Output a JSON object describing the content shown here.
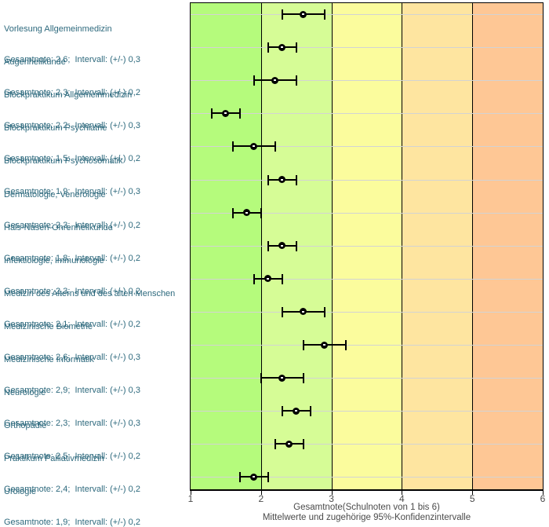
{
  "chart_data": {
    "type": "scatter",
    "subtype": "means-with-confidence-intervals",
    "xlabel": "Gesamtnote(Schulnoten von 1 bis 6)",
    "xlabel2": "Mittelwerte und zugehörige 95%-Konfidenzintervalle",
    "xlim": [
      1,
      6
    ],
    "x_ticks": [
      "1",
      "2",
      "3",
      "4",
      "5",
      "6"
    ],
    "grid": "horizontal gridline per row",
    "gridline_color": "#d3d3d3",
    "marker_color": "#000000",
    "label_color": "#2d697d",
    "axis_text_color": "#4a4a4a",
    "bands": [
      {
        "from": 1,
        "to": 2,
        "color": "#b5fb7c"
      },
      {
        "from": 2,
        "to": 3,
        "color": "#d6fc96"
      },
      {
        "from": 3,
        "to": 4,
        "color": "#fbfc9d"
      },
      {
        "from": 4,
        "to": 5,
        "color": "#fee5a0"
      },
      {
        "from": 5,
        "to": 6,
        "color": "#fec795"
      }
    ],
    "rows": [
      {
        "name": "Vorlesung Allgemeinmedizin",
        "note_line": "Gesamtnote: 2,6;  Intervall: (+/-) 0,3",
        "mean": 2.6,
        "interval": 0.3
      },
      {
        "name": "Augenheilkunde",
        "note_line": "Gesamtnote: 2,3;  Intervall: (+/-) 0,2",
        "mean": 2.3,
        "interval": 0.2
      },
      {
        "name": "Blockpraktikum Allgemeinmedizin",
        "note_line": "Gesamtnote: 2,2;  Intervall: (+/-) 0,3",
        "mean": 2.2,
        "interval": 0.3
      },
      {
        "name": "Blockpraktikum Psychiatrie",
        "note_line": "Gesamtnote: 1,5;  Intervall: (+/-) 0,2",
        "mean": 1.5,
        "interval": 0.2
      },
      {
        "name": "Blockpraktikum Psychosomatik",
        "note_line": "Gesamtnote: 1,9;  Intervall: (+/-) 0,3",
        "mean": 1.9,
        "interval": 0.3
      },
      {
        "name": "Dermatologie, Venerologie",
        "note_line": "Gesamtnote: 2,3;  Intervall: (+/-) 0,2",
        "mean": 2.3,
        "interval": 0.2
      },
      {
        "name": "Hals-Nasen-Ohrenheilkunde",
        "note_line": "Gesamtnote: 1,8;  Intervall: (+/-) 0,2",
        "mean": 1.8,
        "interval": 0.2
      },
      {
        "name": "Infektiologie, Immunologie",
        "note_line": "Gesamtnote: 2,3;  Intervall: (+/-) 0,2",
        "mean": 2.3,
        "interval": 0.2
      },
      {
        "name": "Medizin des Alterns und des alten Menschen",
        "note_line": "Gesamtnote: 2,1;  Intervall: (+/-) 0,2",
        "mean": 2.1,
        "interval": 0.2
      },
      {
        "name": "Medizinische Biometrie",
        "note_line": "Gesamtnote: 2,6;  Intervall: (+/-) 0,3",
        "mean": 2.6,
        "interval": 0.3
      },
      {
        "name": "Medizinische Informatik",
        "note_line": "Gesamtnote: 2,9;  Intervall: (+/-) 0,3",
        "mean": 2.9,
        "interval": 0.3
      },
      {
        "name": "Neurologie",
        "note_line": "Gesamtnote: 2,3;  Intervall: (+/-) 0,3",
        "mean": 2.3,
        "interval": 0.3
      },
      {
        "name": "Orthopädie",
        "note_line": "Gesamtnote: 2,5;  Intervall: (+/-) 0,2",
        "mean": 2.5,
        "interval": 0.2
      },
      {
        "name": "Praktikum Palliativmedizin",
        "note_line": "Gesamtnote: 2,4;  Intervall: (+/-) 0,2",
        "mean": 2.4,
        "interval": 0.2
      },
      {
        "name": "Urologie",
        "note_line": "Gesamtnote: 1,9;  Intervall: (+/-) 0,2",
        "mean": 1.9,
        "interval": 0.2
      }
    ]
  }
}
